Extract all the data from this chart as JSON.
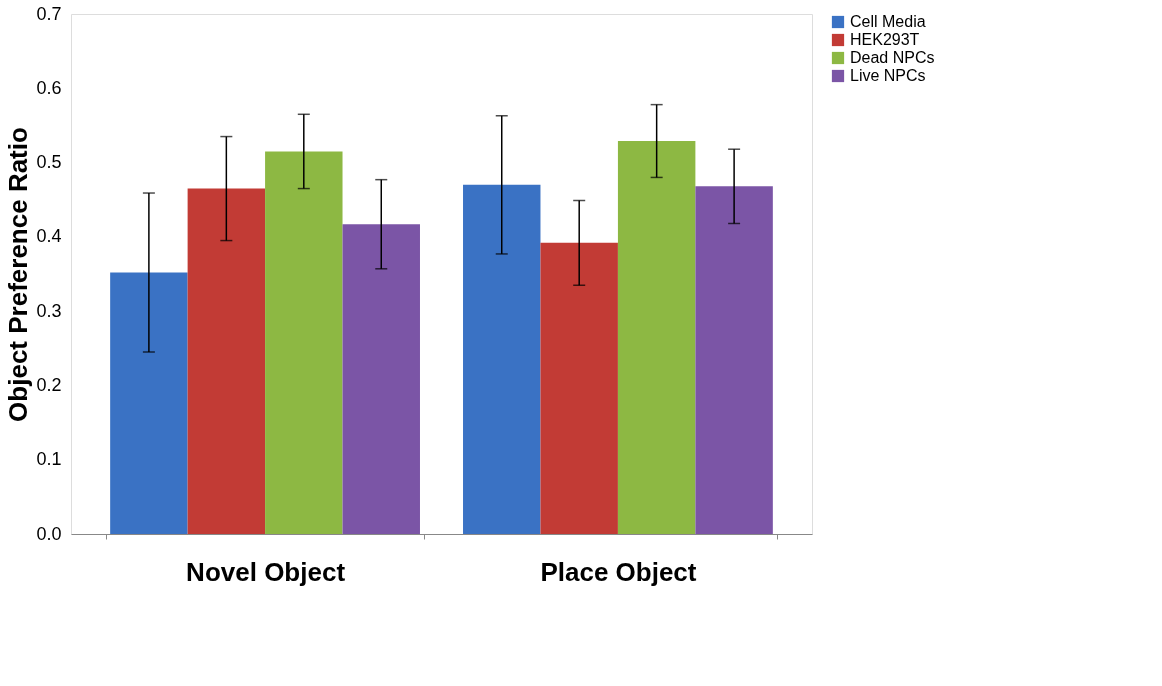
{
  "chart_data": {
    "type": "bar",
    "ylabel": "Object Preference Ratio",
    "categories": [
      "Novel Object",
      "Place Object"
    ],
    "series": [
      {
        "name": "Cell Media",
        "color": "#3a72c4",
        "values": [
          0.352,
          0.47
        ],
        "errors": [
          0.107,
          0.093
        ]
      },
      {
        "name": "HEK293T",
        "color": "#c23b35",
        "values": [
          0.465,
          0.392
        ],
        "errors": [
          0.07,
          0.057
        ]
      },
      {
        "name": "Dead NPCs",
        "color": "#8db843",
        "values": [
          0.515,
          0.529
        ],
        "errors": [
          0.05,
          0.049
        ]
      },
      {
        "name": "Live NPCs",
        "color": "#7b55a6",
        "values": [
          0.417,
          0.468
        ],
        "errors": [
          0.06,
          0.05
        ]
      }
    ],
    "ylim": [
      0,
      0.7
    ],
    "yticks": [
      {
        "value": 0,
        "label": "0.0"
      },
      0.1,
      0.2,
      0.3,
      0.4,
      0.5,
      0.6,
      0.7
    ],
    "grid": false,
    "legend": "right"
  }
}
